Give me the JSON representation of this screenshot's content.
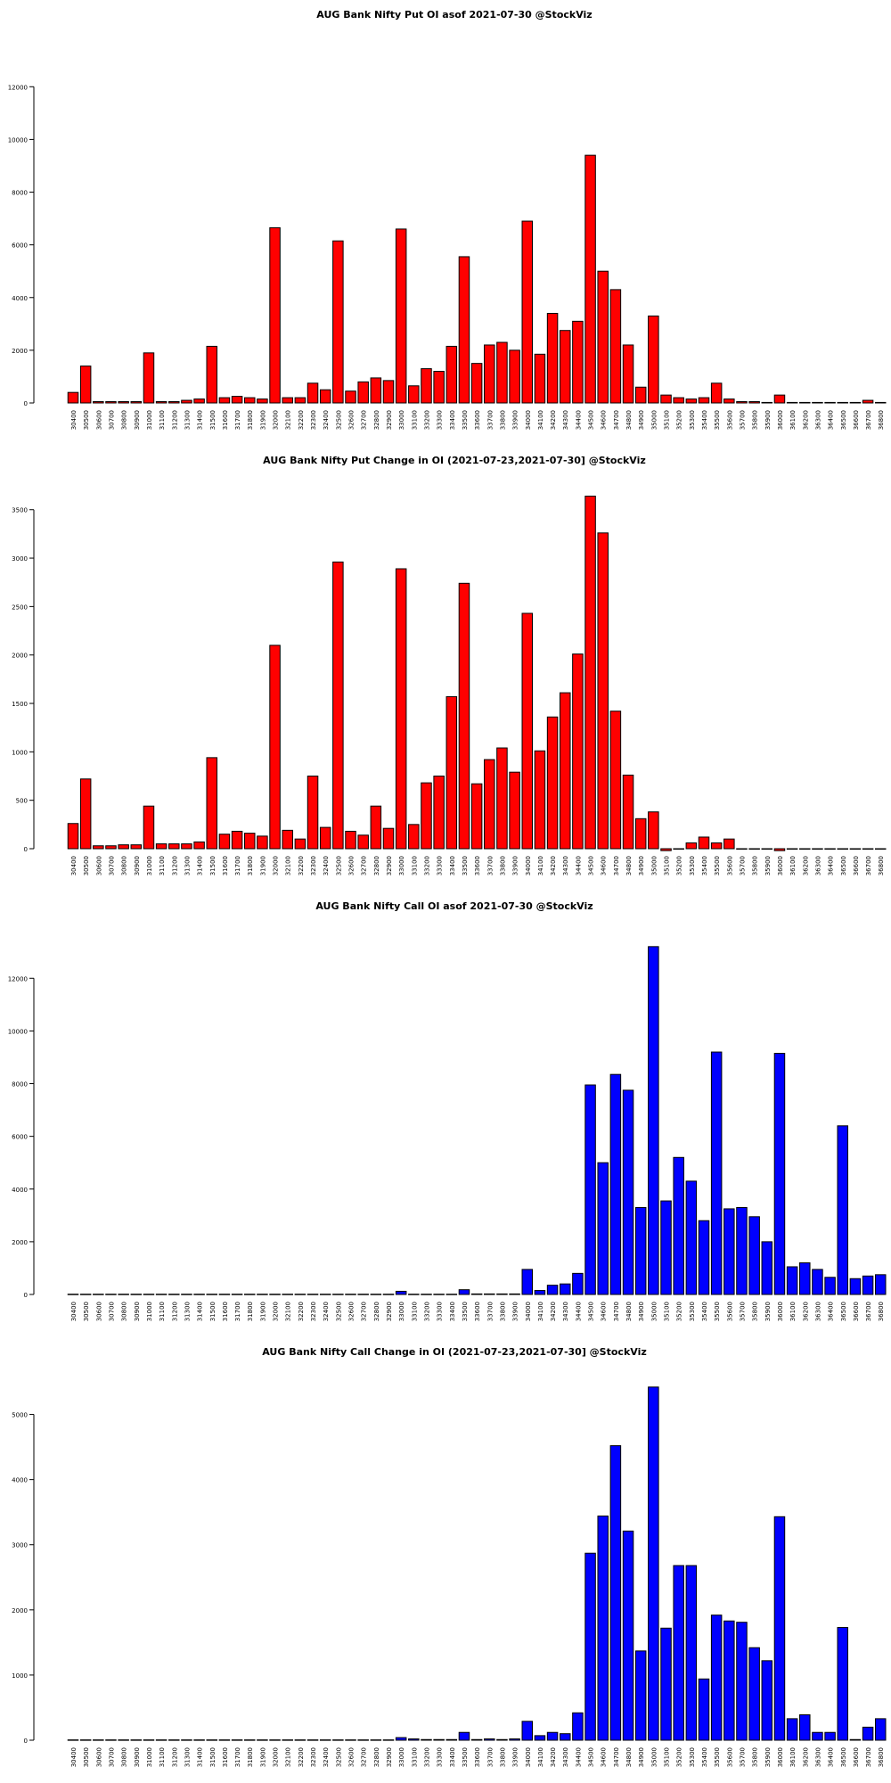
{
  "chart_data": [
    {
      "type": "bar",
      "title": "AUG Bank Nifty Put OI asof 2021-07-30 @StockViz",
      "color": "#ff0000",
      "categories": [
        "30400",
        "30500",
        "30600",
        "30700",
        "30800",
        "30900",
        "31000",
        "31100",
        "31200",
        "31300",
        "31400",
        "31500",
        "31600",
        "31700",
        "31800",
        "31900",
        "32000",
        "32100",
        "32200",
        "32300",
        "32400",
        "32500",
        "32600",
        "32700",
        "32800",
        "32900",
        "33000",
        "33100",
        "33200",
        "33300",
        "33400",
        "33500",
        "33600",
        "33700",
        "33800",
        "33900",
        "34000",
        "34100",
        "34200",
        "34300",
        "34400",
        "34500",
        "34600",
        "34700",
        "34800",
        "34900",
        "35000",
        "35100",
        "35200",
        "35300",
        "35400",
        "35500",
        "35600",
        "35700",
        "35800",
        "35900",
        "36000",
        "36100",
        "36200",
        "36300",
        "36400",
        "36500",
        "36600",
        "36700",
        "36800"
      ],
      "values": [
        400,
        1400,
        50,
        50,
        50,
        50,
        1900,
        50,
        50,
        100,
        150,
        2150,
        200,
        250,
        200,
        150,
        6650,
        200,
        200,
        750,
        500,
        6150,
        450,
        800,
        950,
        850,
        6600,
        650,
        1300,
        1200,
        2150,
        5550,
        1500,
        2200,
        2300,
        2000,
        6900,
        1850,
        3400,
        2750,
        3100,
        9400,
        5000,
        4300,
        2200,
        600,
        3300,
        300,
        200,
        150,
        200,
        750,
        150,
        50,
        50,
        20,
        300,
        20,
        20,
        20,
        20,
        20,
        20,
        100,
        20
      ],
      "ylim": [
        0,
        13600
      ],
      "yticks": [
        0,
        2000,
        4000,
        6000,
        8000,
        10000,
        12000
      ]
    },
    {
      "type": "bar",
      "title": "AUG Bank Nifty Put Change in OI (2021-07-23,2021-07-30] @StockViz",
      "color": "#ff0000",
      "categories": [
        "30400",
        "30500",
        "30600",
        "30700",
        "30800",
        "30900",
        "31000",
        "31100",
        "31200",
        "31300",
        "31400",
        "31500",
        "31600",
        "31700",
        "31800",
        "31900",
        "32000",
        "32100",
        "32200",
        "32300",
        "32400",
        "32500",
        "32600",
        "32700",
        "32800",
        "32900",
        "33000",
        "33100",
        "33200",
        "33300",
        "33400",
        "33500",
        "33600",
        "33700",
        "33800",
        "33900",
        "34000",
        "34100",
        "34200",
        "34300",
        "34400",
        "34500",
        "34600",
        "34700",
        "34800",
        "34900",
        "35000",
        "35100",
        "35200",
        "35300",
        "35400",
        "35500",
        "35600",
        "35700",
        "35800",
        "35900",
        "36000",
        "36100",
        "36200",
        "36300",
        "36400",
        "36500",
        "36600",
        "36700",
        "36800"
      ],
      "values": [
        260,
        720,
        30,
        30,
        40,
        40,
        440,
        50,
        50,
        50,
        70,
        940,
        150,
        180,
        160,
        130,
        2100,
        190,
        100,
        750,
        220,
        2960,
        180,
        140,
        440,
        210,
        2890,
        250,
        680,
        750,
        1570,
        2740,
        670,
        920,
        1040,
        790,
        2430,
        1010,
        1360,
        1610,
        2010,
        3640,
        3260,
        1420,
        760,
        310,
        380,
        -20,
        0,
        60,
        120,
        60,
        100,
        0,
        0,
        0,
        -20,
        0,
        0,
        0,
        0,
        0,
        0,
        0,
        0
      ],
      "ylim": [
        0,
        3700
      ],
      "yticks": [
        0,
        500,
        1000,
        1500,
        2000,
        2500,
        3000,
        3500
      ]
    },
    {
      "type": "bar",
      "title": "AUG Bank Nifty Call OI asof 2021-07-30 @StockViz",
      "color": "#0000ff",
      "categories": [
        "30400",
        "30500",
        "30600",
        "30700",
        "30800",
        "30900",
        "31000",
        "31100",
        "31200",
        "31300",
        "31400",
        "31500",
        "31600",
        "31700",
        "31800",
        "31900",
        "32000",
        "32100",
        "32200",
        "32300",
        "32400",
        "32500",
        "32600",
        "32700",
        "32800",
        "32900",
        "33000",
        "33100",
        "33200",
        "33300",
        "33400",
        "33500",
        "33600",
        "33700",
        "33800",
        "33900",
        "34000",
        "34100",
        "34200",
        "34300",
        "34400",
        "34500",
        "34600",
        "34700",
        "34800",
        "34900",
        "35000",
        "35100",
        "35200",
        "35300",
        "35400",
        "35500",
        "35600",
        "35700",
        "35800",
        "35900",
        "36000",
        "36100",
        "36200",
        "36300",
        "36400",
        "36500",
        "36600",
        "36700",
        "36800"
      ],
      "values": [
        10,
        10,
        10,
        10,
        10,
        10,
        10,
        10,
        10,
        10,
        10,
        10,
        10,
        10,
        10,
        10,
        10,
        10,
        10,
        10,
        10,
        10,
        10,
        10,
        10,
        10,
        120,
        10,
        10,
        10,
        10,
        180,
        20,
        20,
        20,
        20,
        950,
        150,
        350,
        400,
        800,
        7950,
        5000,
        8350,
        7750,
        3300,
        13200,
        3550,
        5200,
        4300,
        2800,
        9200,
        3250,
        3300,
        2950,
        2000,
        9150,
        1050,
        1200,
        950,
        650,
        6400,
        600,
        700,
        750
      ],
      "ylim": [
        0,
        13600
      ],
      "yticks": [
        0,
        2000,
        4000,
        6000,
        8000,
        10000,
        12000
      ]
    },
    {
      "type": "bar",
      "title": "AUG Bank Nifty Call Change in OI (2021-07-23,2021-07-30] @StockViz",
      "color": "#0000ff",
      "categories": [
        "30400",
        "30500",
        "30600",
        "30700",
        "30800",
        "30900",
        "31000",
        "31100",
        "31200",
        "31300",
        "31400",
        "31500",
        "31600",
        "31700",
        "31800",
        "31900",
        "32000",
        "32100",
        "32200",
        "32300",
        "32400",
        "32500",
        "32600",
        "32700",
        "32800",
        "32900",
        "33000",
        "33100",
        "33200",
        "33300",
        "33400",
        "33500",
        "33600",
        "33700",
        "33800",
        "33900",
        "34000",
        "34100",
        "34200",
        "34300",
        "34400",
        "34500",
        "34600",
        "34700",
        "34800",
        "34900",
        "35000",
        "35100",
        "35200",
        "35300",
        "35400",
        "35500",
        "35600",
        "35700",
        "35800",
        "35900",
        "36000",
        "36100",
        "36200",
        "36300",
        "36400",
        "36500",
        "36600",
        "36700",
        "36800"
      ],
      "values": [
        5,
        5,
        5,
        5,
        5,
        5,
        5,
        5,
        5,
        5,
        5,
        5,
        5,
        5,
        5,
        5,
        5,
        5,
        5,
        5,
        5,
        5,
        5,
        5,
        5,
        5,
        40,
        20,
        10,
        10,
        10,
        120,
        10,
        20,
        10,
        20,
        290,
        70,
        120,
        100,
        420,
        2870,
        3440,
        4520,
        3210,
        1370,
        5420,
        1720,
        2680,
        2680,
        940,
        1920,
        1830,
        1810,
        1420,
        1220,
        3430,
        330,
        390,
        120,
        120,
        1730,
        10,
        200,
        330
      ],
      "ylim": [
        0,
        5500
      ],
      "yticks": [
        0,
        1000,
        2000,
        3000,
        4000,
        5000
      ]
    }
  ]
}
